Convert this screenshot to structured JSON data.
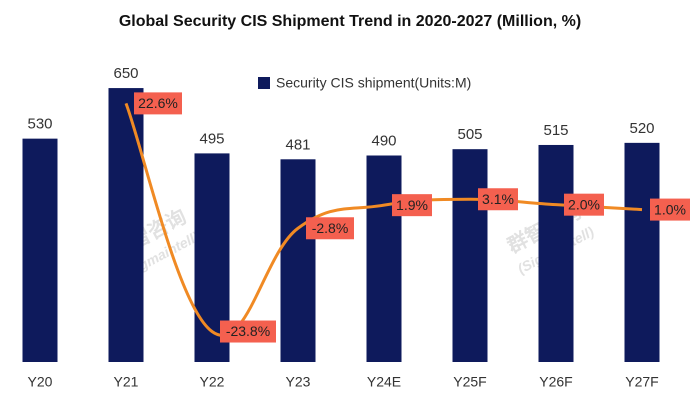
{
  "chart_data": {
    "type": "bar",
    "title": "Global Security CIS Shipment Trend in 2020-2027 (Million, %)",
    "categories": [
      "Y20",
      "Y21",
      "Y22",
      "Y23",
      "Y24E",
      "Y25F",
      "Y26F",
      "Y27F"
    ],
    "series": [
      {
        "name": "Security CIS shipment(Units:M)",
        "color": "#0e1a5c",
        "type": "bar",
        "values": [
          530,
          650,
          495,
          481,
          490,
          505,
          515,
          520
        ]
      },
      {
        "color": "#f08a24",
        "label_color": "#f4604f",
        "type": "line",
        "axis": "y2",
        "values": [
          null,
          22.6,
          -23.8,
          -2.8,
          1.9,
          3.1,
          2.0,
          1.0
        ],
        "value_labels": [
          null,
          "22.6%",
          "-23.8%",
          "-2.8%",
          "1.9%",
          "3.1%",
          "2.0%",
          "1.0%"
        ]
      }
    ],
    "ylim": [
      0,
      700
    ],
    "y2lim": [
      -30,
      30
    ],
    "legend": "top-right",
    "watermark": [
      "群智咨询",
      "(Sigmaintell)"
    ]
  }
}
